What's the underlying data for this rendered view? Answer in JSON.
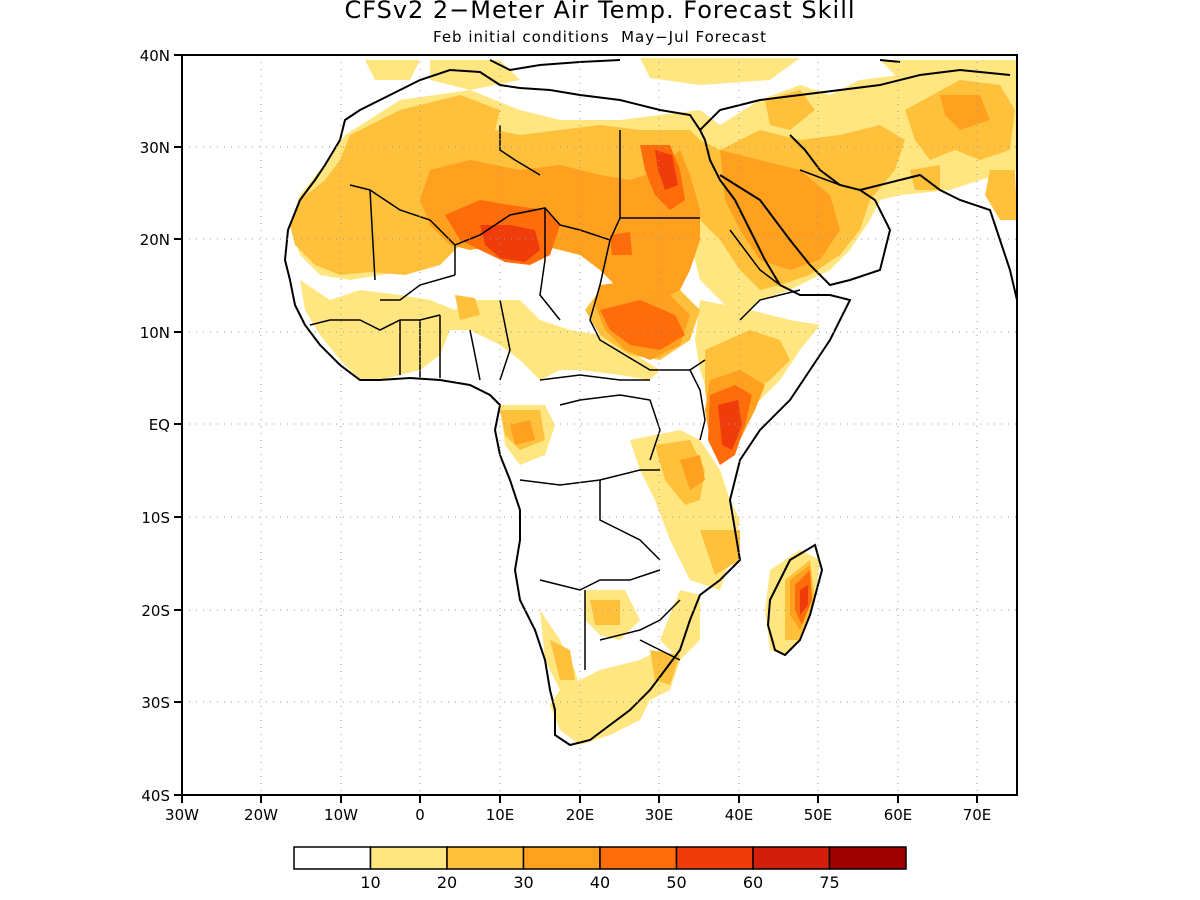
{
  "title": "CFSv2 2−Meter Air Temp. Forecast Skill",
  "subtitle": "Feb initial conditions  May−Jul Forecast",
  "lat_labels": [
    "40N",
    "30N",
    "20N",
    "10N",
    "EQ",
    "10S",
    "20S",
    "30S",
    "40S"
  ],
  "lon_labels": [
    "30W",
    "20W",
    "10W",
    "0",
    "10E",
    "20E",
    "30E",
    "40E",
    "50E",
    "60E",
    "70E"
  ],
  "lon_range": [
    -30,
    75
  ],
  "lat_range": [
    -40,
    40
  ],
  "colorbar": {
    "colors": [
      "#ffffff",
      "#ffe680",
      "#ffc03c",
      "#ffa01e",
      "#ff6c0a",
      "#f03c0a",
      "#d21e0a",
      "#a00000"
    ],
    "labels": [
      "10",
      "20",
      "30",
      "40",
      "50",
      "60",
      "75"
    ]
  },
  "skill_regions": [
    {
      "level": "10-20",
      "color": "#ffe680",
      "description": "light yellow skill areas over Sahel, Arabia, southern Africa"
    },
    {
      "level": "20-30",
      "color": "#ffc03c",
      "description": "northern Africa and Arabian Peninsula"
    },
    {
      "level": "30-40",
      "color": "#ffa01e",
      "description": "central Sahara, Sudan, Arabia interior"
    },
    {
      "level": "40-50",
      "color": "#ff6c0a",
      "description": "Chad/Niger, Sudan, Kenya, Madagascar"
    },
    {
      "level": "50-60",
      "color": "#f03c0a",
      "description": "Kenya coast, eastern Madagascar"
    }
  ]
}
